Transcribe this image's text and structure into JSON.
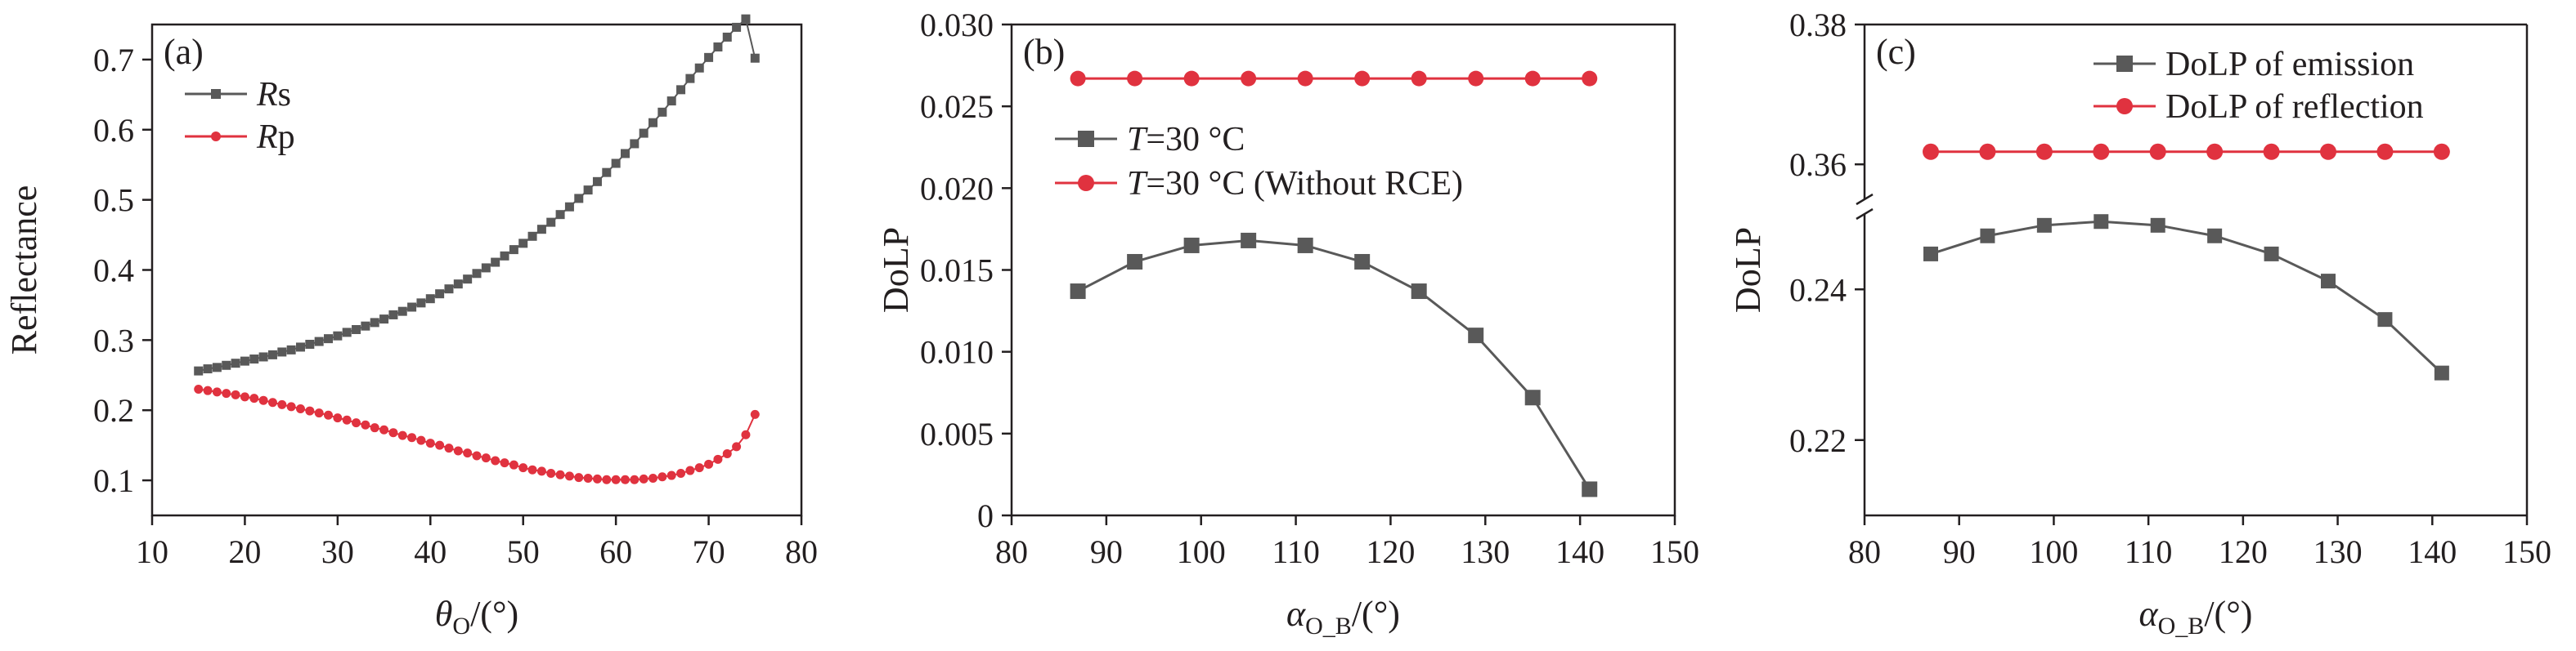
{
  "chart_data": [
    {
      "type": "line",
      "panel_label": "(a)",
      "xlabel": "θ",
      "xlabel_sub": "O",
      "xlabel_suffix": "/(°)",
      "ylabel": "Reflectance",
      "xlim": [
        10,
        80
      ],
      "ylim": [
        0.05,
        0.75
      ],
      "xticks": [
        10,
        20,
        30,
        40,
        50,
        60,
        70,
        80
      ],
      "yticks": [
        0.1,
        0.2,
        0.3,
        0.4,
        0.5,
        0.6,
        0.7
      ],
      "legend_position": "top-left",
      "series": [
        {
          "name": "Rs",
          "legend_italic": "R",
          "legend_rest": "s",
          "color": "#595959",
          "marker": "square",
          "x": [
            15,
            16,
            17,
            18,
            19,
            20,
            21,
            22,
            23,
            24,
            25,
            26,
            27,
            28,
            29,
            30,
            31,
            32,
            33,
            34,
            35,
            36,
            37,
            38,
            39,
            40,
            41,
            42,
            43,
            44,
            45,
            46,
            47,
            48,
            49,
            50,
            51,
            52,
            53,
            54,
            55,
            56,
            57,
            58,
            59,
            60,
            61,
            62,
            63,
            64,
            65,
            66,
            67,
            68,
            69,
            70,
            71,
            72,
            73,
            74,
            75
          ],
          "values": [
            0.256,
            0.259,
            0.261,
            0.264,
            0.267,
            0.27,
            0.273,
            0.276,
            0.279,
            0.283,
            0.286,
            0.29,
            0.294,
            0.298,
            0.302,
            0.306,
            0.311,
            0.315,
            0.32,
            0.325,
            0.33,
            0.336,
            0.341,
            0.347,
            0.353,
            0.359,
            0.366,
            0.373,
            0.38,
            0.387,
            0.395,
            0.403,
            0.411,
            0.42,
            0.429,
            0.438,
            0.448,
            0.458,
            0.468,
            0.479,
            0.49,
            0.502,
            0.514,
            0.526,
            0.539,
            0.552,
            0.566,
            0.58,
            0.595,
            0.61,
            0.625,
            0.641,
            0.657,
            0.673,
            0.688,
            0.703,
            0.718,
            0.732,
            0.746,
            0.758,
            0.702
          ]
        },
        {
          "name": "Rp",
          "legend_italic": "R",
          "legend_rest": "p",
          "color": "#e0323f",
          "marker": "circle",
          "x": [
            15,
            16,
            17,
            18,
            19,
            20,
            21,
            22,
            23,
            24,
            25,
            26,
            27,
            28,
            29,
            30,
            31,
            32,
            33,
            34,
            35,
            36,
            37,
            38,
            39,
            40,
            41,
            42,
            43,
            44,
            45,
            46,
            47,
            48,
            49,
            50,
            51,
            52,
            53,
            54,
            55,
            56,
            57,
            58,
            59,
            60,
            61,
            62,
            63,
            64,
            65,
            66,
            67,
            68,
            69,
            70,
            71,
            72,
            73,
            74,
            75
          ],
          "values": [
            0.23,
            0.228,
            0.226,
            0.224,
            0.222,
            0.219,
            0.217,
            0.214,
            0.211,
            0.208,
            0.205,
            0.202,
            0.199,
            0.196,
            0.193,
            0.189,
            0.186,
            0.182,
            0.179,
            0.175,
            0.172,
            0.168,
            0.164,
            0.161,
            0.157,
            0.153,
            0.15,
            0.146,
            0.142,
            0.139,
            0.135,
            0.132,
            0.128,
            0.125,
            0.122,
            0.118,
            0.115,
            0.113,
            0.11,
            0.108,
            0.106,
            0.104,
            0.103,
            0.102,
            0.101,
            0.101,
            0.101,
            0.101,
            0.102,
            0.103,
            0.105,
            0.107,
            0.11,
            0.114,
            0.118,
            0.123,
            0.13,
            0.138,
            0.148,
            0.165,
            0.194
          ]
        }
      ]
    },
    {
      "type": "line",
      "panel_label": "(b)",
      "xlabel": "α",
      "xlabel_sub": "O_B",
      "xlabel_suffix": "/(°)",
      "ylabel": "DoLP",
      "xlim": [
        80,
        150
      ],
      "ylim": [
        0,
        0.03
      ],
      "xticks": [
        80,
        90,
        100,
        110,
        120,
        130,
        140,
        150
      ],
      "yticks": [
        0,
        0.005,
        0.01,
        0.015,
        0.02,
        0.025,
        0.03
      ],
      "ytick_labels": [
        "0",
        "0.005",
        "0.010",
        "0.015",
        "0.020",
        "0.025",
        "0.030"
      ],
      "legend_position": "upper-left",
      "series": [
        {
          "name": "T=30 °C",
          "legend_italic": "T",
          "legend_rest": "=30 °C",
          "color": "#595959",
          "marker": "square",
          "x": [
            87,
            93,
            99,
            105,
            111,
            117,
            123,
            129,
            135,
            141
          ],
          "values": [
            0.0137,
            0.0155,
            0.0165,
            0.0168,
            0.0165,
            0.0155,
            0.0137,
            0.011,
            0.0072,
            0.0016
          ]
        },
        {
          "name": "T=30 °C (Without RCE)",
          "legend_italic": "T",
          "legend_rest": "=30 °C (Without RCE)",
          "color": "#e0323f",
          "marker": "circle",
          "x": [
            87,
            93,
            99,
            105,
            111,
            117,
            123,
            129,
            135,
            141
          ],
          "values": [
            0.0267,
            0.0267,
            0.0267,
            0.0267,
            0.0267,
            0.0267,
            0.0267,
            0.0267,
            0.0267,
            0.0267
          ]
        }
      ]
    },
    {
      "type": "line",
      "panel_label": "(c)",
      "xlabel": "α",
      "xlabel_sub": "O_B",
      "xlabel_suffix": "/(°)",
      "ylabel": "DoLP",
      "xlim": [
        80,
        150
      ],
      "y_axis_break": {
        "lower_range": [
          0.21,
          0.25
        ],
        "upper_range": [
          0.355,
          0.38
        ]
      },
      "xticks": [
        80,
        90,
        100,
        110,
        120,
        130,
        140,
        150
      ],
      "yticks": [
        0.22,
        0.24,
        0.36,
        0.38
      ],
      "ytick_labels": [
        "0.22",
        "0.24",
        "0.36",
        "0.38"
      ],
      "legend_position": "top-right",
      "series": [
        {
          "name": "DoLP of emission",
          "legend_italic": "",
          "legend_rest": "DoLP of emission",
          "color": "#595959",
          "marker": "square",
          "x": [
            87,
            93,
            99,
            105,
            111,
            117,
            123,
            129,
            135,
            141
          ],
          "values": [
            0.2447,
            0.2471,
            0.2485,
            0.249,
            0.2485,
            0.2471,
            0.2447,
            0.2411,
            0.236,
            0.2289
          ]
        },
        {
          "name": "DoLP of reflection",
          "legend_italic": "",
          "legend_rest": "DoLP of reflection",
          "color": "#e0323f",
          "marker": "circle",
          "x": [
            87,
            93,
            99,
            105,
            111,
            117,
            123,
            129,
            135,
            141
          ],
          "values": [
            0.3618,
            0.3618,
            0.3618,
            0.3618,
            0.3618,
            0.3618,
            0.3618,
            0.3618,
            0.3618,
            0.3618
          ]
        }
      ]
    }
  ]
}
